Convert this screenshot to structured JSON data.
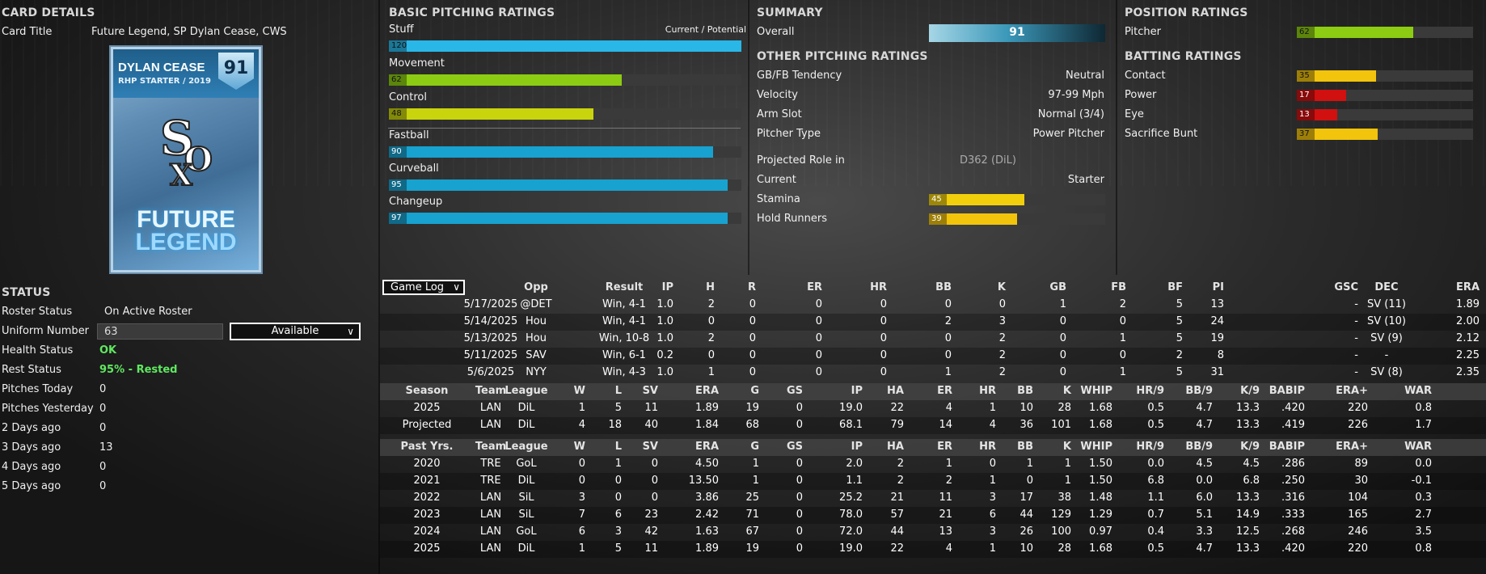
{
  "card_details": {
    "title": "CARD DETAILS",
    "card_title_label": "Card Title",
    "card_title_value": "Future Legend, SP Dylan Cease, CWS",
    "card": {
      "name": "DYLAN CEASE",
      "position": "RHP STARTER / 2019",
      "overall": "91",
      "legend_line1": "FUTURE",
      "legend_line2": "LEGEND"
    }
  },
  "basic_pitching": {
    "title": "BASIC PITCHING RATINGS",
    "header_right": "Current / Potential",
    "ratings": [
      {
        "label": "Stuff",
        "value": "120",
        "pct": 1.0,
        "color": "#29b7e8"
      },
      {
        "label": "Movement",
        "value": "62",
        "pct": 0.66,
        "color": "#8ccc12"
      },
      {
        "label": "Control",
        "value": "48",
        "pct": 0.58,
        "color": "#c9d40c"
      }
    ],
    "pitches": [
      {
        "label": "Fastball",
        "value": "90",
        "pct": 0.92,
        "color": "#17a2cf"
      },
      {
        "label": "Curveball",
        "value": "95",
        "pct": 0.96,
        "color": "#17a2cf"
      },
      {
        "label": "Changeup",
        "value": "97",
        "pct": 0.96,
        "color": "#17a2cf"
      }
    ]
  },
  "summary": {
    "title": "SUMMARY",
    "overall_label": "Overall",
    "overall_value": "91",
    "other_title": "OTHER PITCHING RATINGS",
    "other": [
      {
        "label": "GB/FB Tendency",
        "value": "Neutral"
      },
      {
        "label": "Velocity",
        "value": "97-99 Mph"
      },
      {
        "label": "Arm Slot",
        "value": "Normal (3/4)"
      },
      {
        "label": "Pitcher Type",
        "value": "Power Pitcher"
      }
    ],
    "projected_label": "Projected Role in",
    "projected_league": "D362 (DiL)",
    "current_label": "Current",
    "current_value": "Starter",
    "bars": [
      {
        "label": "Stamina",
        "value": "45",
        "pct": 0.54,
        "color": "#f2cf0c"
      },
      {
        "label": "Hold Runners",
        "value": "39",
        "pct": 0.5,
        "color": "#f2c40c"
      }
    ]
  },
  "position_ratings": {
    "title": "POSITION RATINGS",
    "items": [
      {
        "label": "Pitcher",
        "value": "62",
        "pct": 0.66,
        "color": "#8ccc12"
      }
    ],
    "batting_title": "BATTING RATINGS",
    "batting": [
      {
        "label": "Contact",
        "value": "35",
        "pct": 0.45,
        "color": "#f2c40c"
      },
      {
        "label": "Power",
        "value": "17",
        "pct": 0.28,
        "color": "#d11010"
      },
      {
        "label": "Eye",
        "value": "13",
        "pct": 0.23,
        "color": "#d11010"
      },
      {
        "label": "Sacrifice Bunt",
        "value": "37",
        "pct": 0.46,
        "color": "#f2c40c"
      }
    ]
  },
  "status": {
    "title": "STATUS",
    "roster_label": "Roster Status",
    "roster_value": "On Active Roster",
    "uniform_label": "Uniform Number",
    "uniform_value": "63",
    "availability": "Available",
    "health_label": "Health Status",
    "health_value": "OK",
    "rest_label": "Rest Status",
    "rest_value": "95% - Rested",
    "pitch_rows": [
      {
        "label": "Pitches Today",
        "value": "0"
      },
      {
        "label": "Pitches Yesterday",
        "value": "0"
      },
      {
        "label": "2 Days ago",
        "value": "0"
      },
      {
        "label": "3 Days ago",
        "value": "13"
      },
      {
        "label": "4 Days ago",
        "value": "0"
      },
      {
        "label": "5 Days ago",
        "value": "0"
      }
    ]
  },
  "game_log": {
    "selector": "Game Log",
    "headers": [
      "Opp",
      "Result",
      "IP",
      "H",
      "R",
      "ER",
      "HR",
      "BB",
      "K",
      "GB",
      "FB",
      "BF",
      "PI",
      "GSC",
      "DEC",
      "ERA"
    ],
    "rows": [
      [
        "5/17/2025",
        "@DET",
        "Win, 4-1",
        "1.0",
        "2",
        "0",
        "0",
        "0",
        "0",
        "0",
        "1",
        "2",
        "5",
        "13",
        "-",
        "SV (11)",
        "1.89"
      ],
      [
        "5/14/2025",
        "Hou",
        "Win, 4-1",
        "1.0",
        "0",
        "0",
        "0",
        "0",
        "2",
        "3",
        "0",
        "0",
        "5",
        "24",
        "-",
        "SV (10)",
        "2.00"
      ],
      [
        "5/13/2025",
        "Hou",
        "Win, 10-8",
        "1.0",
        "2",
        "0",
        "0",
        "0",
        "0",
        "2",
        "0",
        "1",
        "5",
        "19",
        "-",
        "SV (9)",
        "2.12"
      ],
      [
        "5/11/2025",
        "SAV",
        "Win, 6-1",
        "0.2",
        "0",
        "0",
        "0",
        "0",
        "0",
        "2",
        "0",
        "0",
        "2",
        "8",
        "-",
        "-",
        "2.25"
      ],
      [
        "5/6/2025",
        "NYY",
        "Win, 4-3",
        "1.0",
        "1",
        "0",
        "0",
        "0",
        "1",
        "2",
        "0",
        "1",
        "5",
        "31",
        "-",
        "SV (8)",
        "2.35"
      ]
    ]
  },
  "season": {
    "headers": [
      "Season",
      "Team",
      "League",
      "W",
      "L",
      "SV",
      "ERA",
      "G",
      "GS",
      "IP",
      "HA",
      "ER",
      "HR",
      "BB",
      "K",
      "WHIP",
      "HR/9",
      "BB/9",
      "K/9",
      "BABIP",
      "ERA+",
      "WAR"
    ],
    "rows": [
      [
        "2025",
        "LAN",
        "DiL",
        "1",
        "5",
        "11",
        "1.89",
        "19",
        "0",
        "19.0",
        "22",
        "4",
        "1",
        "10",
        "28",
        "1.68",
        "0.5",
        "4.7",
        "13.3",
        ".420",
        "220",
        "0.8"
      ],
      [
        "Projected",
        "LAN",
        "DiL",
        "4",
        "18",
        "40",
        "1.84",
        "68",
        "0",
        "68.1",
        "79",
        "14",
        "4",
        "36",
        "101",
        "1.68",
        "0.5",
        "4.7",
        "13.3",
        ".419",
        "226",
        "1.7"
      ]
    ]
  },
  "past": {
    "headers": [
      "Past Yrs.",
      "Team",
      "League",
      "W",
      "L",
      "SV",
      "ERA",
      "G",
      "GS",
      "IP",
      "HA",
      "ER",
      "HR",
      "BB",
      "K",
      "WHIP",
      "HR/9",
      "BB/9",
      "K/9",
      "BABIP",
      "ERA+",
      "WAR"
    ],
    "rows": [
      [
        "2020",
        "TRE",
        "GoL",
        "0",
        "1",
        "0",
        "4.50",
        "1",
        "0",
        "2.0",
        "2",
        "1",
        "0",
        "1",
        "1",
        "1.50",
        "0.0",
        "4.5",
        "4.5",
        ".286",
        "89",
        "0.0"
      ],
      [
        "2021",
        "TRE",
        "DiL",
        "0",
        "0",
        "0",
        "13.50",
        "1",
        "0",
        "1.1",
        "2",
        "2",
        "1",
        "0",
        "1",
        "1.50",
        "6.8",
        "0.0",
        "6.8",
        ".250",
        "30",
        "-0.1"
      ],
      [
        "2022",
        "LAN",
        "SiL",
        "3",
        "0",
        "0",
        "3.86",
        "25",
        "0",
        "25.2",
        "21",
        "11",
        "3",
        "17",
        "38",
        "1.48",
        "1.1",
        "6.0",
        "13.3",
        ".316",
        "104",
        "0.3"
      ],
      [
        "2023",
        "LAN",
        "SiL",
        "7",
        "6",
        "23",
        "2.42",
        "71",
        "0",
        "78.0",
        "57",
        "21",
        "6",
        "44",
        "129",
        "1.29",
        "0.7",
        "5.1",
        "14.9",
        ".333",
        "165",
        "2.7"
      ],
      [
        "2024",
        "LAN",
        "GoL",
        "6",
        "3",
        "42",
        "1.63",
        "67",
        "0",
        "72.0",
        "44",
        "13",
        "3",
        "26",
        "100",
        "0.97",
        "0.4",
        "3.3",
        "12.5",
        ".268",
        "246",
        "3.5"
      ],
      [
        "2025",
        "LAN",
        "DiL",
        "1",
        "5",
        "11",
        "1.89",
        "19",
        "0",
        "19.0",
        "22",
        "4",
        "1",
        "10",
        "28",
        "1.68",
        "0.5",
        "4.7",
        "13.3",
        ".420",
        "220",
        "0.8"
      ]
    ]
  }
}
